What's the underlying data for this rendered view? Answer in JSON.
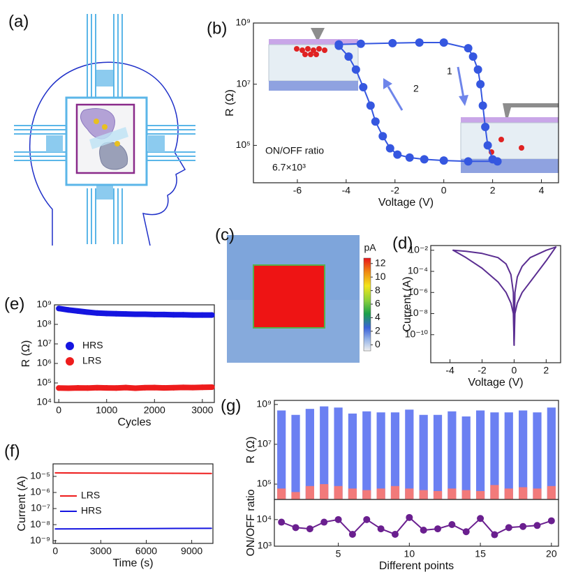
{
  "illustration": {
    "panel": "(a)"
  },
  "chart_data": [
    {
      "panel": "(b)",
      "type": "line",
      "xlabel": "Voltage (V)",
      "ylabel": "R (Ω)",
      "xlim": [
        -7.8,
        4.7
      ],
      "ylim": [
        6000,
        1000000000
      ],
      "ylog": true,
      "xticks": [
        -6,
        -4,
        -2,
        0,
        2,
        4
      ],
      "yticks": [
        {
          "value": 100000,
          "label": "10⁵"
        },
        {
          "value": 10000000,
          "label": "10⁷"
        },
        {
          "value": 1000000000,
          "label": "10⁹"
        }
      ],
      "marker_size": 6,
      "annotations": [
        "ON/OFF ratio",
        "6.7×10³",
        "1",
        "2"
      ],
      "series": [
        {
          "color": "#3557e0",
          "marker": "circle",
          "x": [
            -4.3,
            -3.4,
            -2.1,
            -1.0,
            0,
            1.0,
            1.2,
            1.4,
            1.5,
            1.6,
            1.7,
            1.8,
            2.0
          ],
          "values": [
            200000000,
            210000000,
            220000000,
            230000000,
            230000000,
            150000000,
            80000000,
            30000000,
            10000000,
            2000000,
            400000,
            100000,
            35000
          ]
        },
        {
          "color": "#3557e0",
          "marker": "circle",
          "x": [
            2.2,
            1.0,
            0,
            -0.8,
            -1.4,
            -1.9,
            -2.2,
            -2.5,
            -2.8,
            -3.0,
            -3.3,
            -3.6,
            -3.9,
            -4.3
          ],
          "values": [
            30000,
            30000,
            32000,
            35000,
            40000,
            50000,
            80000,
            200000,
            600000,
            2000000,
            8000000,
            30000000,
            80000000,
            180000000
          ]
        }
      ]
    },
    {
      "panel": "(c)",
      "type": "image",
      "colorbar": {
        "label": "pA",
        "lim": [
          -0.9,
          12.8
        ],
        "ticks": [
          0,
          2,
          4,
          6,
          8,
          10,
          12
        ]
      }
    },
    {
      "panel": "(d)",
      "type": "line",
      "xlabel": "Voltage (V)",
      "ylabel": "Current (A)",
      "xlim": [
        -5.2,
        2.9
      ],
      "ylim": [
        2.2e-13,
        0.028
      ],
      "ylog": true,
      "xticks": [
        -4,
        -2,
        0,
        2
      ],
      "yticks": [
        {
          "value": 0.01,
          "label": "10⁻²"
        },
        {
          "value": 0.0001,
          "label": "10⁻⁴"
        },
        {
          "value": 1e-06,
          "label": "10⁻⁶"
        },
        {
          "value": 1e-08,
          "label": "10⁻⁸"
        },
        {
          "value": 1e-10,
          "label": "10⁻¹⁰"
        }
      ],
      "series": [
        {
          "color": "#5a2d91",
          "x": [
            -3.8,
            -3,
            -2,
            -1,
            -0.5,
            -0.2,
            -0.05,
            0,
            0.05,
            0.2,
            0.5,
            1,
            2,
            2.6
          ],
          "values": [
            0.01,
            0.008,
            0.005,
            0.002,
            0.0005,
            5e-05,
            1e-06,
            1e-11,
            1e-06,
            3e-05,
            0.0003,
            0.002,
            0.01,
            0.02
          ]
        },
        {
          "color": "#5a2d91",
          "x": [
            -3.8,
            -3,
            -2,
            -1,
            -0.5,
            -0.2,
            -0.05,
            0,
            0.05,
            0.2,
            0.5,
            1,
            2,
            2.6
          ],
          "values": [
            0.01,
            0.002,
            0.0002,
            1e-05,
            1e-06,
            1e-07,
            1e-08,
            1e-11,
            1e-08,
            1e-07,
            1e-06,
            1e-05,
            0.001,
            0.02
          ]
        }
      ]
    },
    {
      "panel": "(e)",
      "type": "scatter",
      "xlabel": "Cycles",
      "ylabel": "R (Ω)",
      "xlim": [
        -90,
        3250
      ],
      "ylim": [
        10000,
        1000000000
      ],
      "ylog": true,
      "xticks": [
        0,
        1000,
        2000,
        3000
      ],
      "yticks": [
        {
          "value": 10000,
          "label": "10⁴"
        },
        {
          "value": 100000,
          "label": "10⁵"
        },
        {
          "value": 1000000,
          "label": "10⁶"
        },
        {
          "value": 10000000,
          "label": "10⁷"
        },
        {
          "value": 100000000,
          "label": "10⁸"
        },
        {
          "value": 1000000000,
          "label": "10⁹"
        }
      ],
      "legend": "center left",
      "x": [
        0,
        200,
        400,
        600,
        800,
        1000,
        1200,
        1400,
        1600,
        1800,
        2000,
        2200,
        2400,
        2600,
        2800,
        3000,
        3200
      ],
      "series": [
        {
          "name": "HRS",
          "color": "#1515e0",
          "values": [
            650000000,
            550000000,
            480000000,
            420000000,
            380000000,
            360000000,
            350000000,
            340000000,
            330000000,
            330000000,
            320000000,
            320000000,
            310000000,
            310000000,
            300000000,
            300000000,
            300000000
          ]
        },
        {
          "name": "LRS",
          "color": "#ee1c1c",
          "values": [
            55000,
            54000,
            56000,
            55000,
            57000,
            56000,
            55000,
            58000,
            54000,
            57000,
            58000,
            56000,
            57000,
            59000,
            58000,
            60000,
            61000
          ]
        }
      ]
    },
    {
      "panel": "(f)",
      "type": "line",
      "xlabel": "Time (s)",
      "ylabel": "Current (A)",
      "xlim": [
        -150,
        10400
      ],
      "ylim": [
        6.8e-10,
        6e-05
      ],
      "ylog": true,
      "xticks": [
        0,
        3000,
        6000,
        9000
      ],
      "yticks": [
        {
          "value": 1e-09,
          "label": "10⁻⁹"
        },
        {
          "value": 1e-08,
          "label": "10⁻⁸"
        },
        {
          "value": 1e-07,
          "label": "10⁻⁷"
        },
        {
          "value": 1e-06,
          "label": "10⁻⁶"
        },
        {
          "value": 1e-05,
          "label": "10⁻⁵"
        }
      ],
      "legend": "center left",
      "x": [
        0,
        2000,
        4000,
        6000,
        8000,
        10300
      ],
      "series": [
        {
          "name": "LRS",
          "color": "#ee1c1c",
          "values": [
            1.65e-05,
            1.62e-05,
            1.6e-05,
            1.58e-05,
            1.55e-05,
            1.53e-05
          ]
        },
        {
          "name": "HRS",
          "color": "#1515e0",
          "values": [
            5.4e-09,
            5.5e-09,
            5.6e-09,
            5.7e-09,
            5.8e-09,
            5.9e-09
          ]
        }
      ]
    },
    {
      "panel": "(g)",
      "type": "bar",
      "ylabel": "R (Ω)",
      "xlim": [
        0.5,
        20.5
      ],
      "ylim": [
        17000,
        1600000000
      ],
      "ylog": true,
      "yticks": [
        {
          "value": 100000,
          "label": "10⁵"
        },
        {
          "value": 10000000,
          "label": "10⁷"
        },
        {
          "value": 1000000000,
          "label": "10⁹"
        }
      ],
      "x": [
        1,
        2,
        3,
        4,
        5,
        6,
        7,
        8,
        9,
        10,
        11,
        12,
        13,
        14,
        15,
        16,
        17,
        18,
        19,
        20
      ],
      "series": [
        {
          "color": "#6b80f2",
          "values": [
            500000000,
            300000000,
            600000000,
            800000000,
            700000000,
            350000000,
            450000000,
            400000000,
            400000000,
            550000000,
            300000000,
            300000000,
            450000000,
            250000000,
            500000000,
            400000000,
            400000000,
            500000000,
            400000000,
            700000000
          ]
        },
        {
          "color": "#f27a7a",
          "values": [
            60000,
            40000,
            80000,
            100000,
            80000,
            60000,
            50000,
            60000,
            80000,
            60000,
            50000,
            45000,
            60000,
            50000,
            45000,
            90000,
            60000,
            70000,
            60000,
            80000
          ]
        }
      ]
    },
    {
      "type": "line",
      "xlabel": "Different points",
      "ylabel": "ON/OFF ratio",
      "xlim": [
        0.5,
        20.5
      ],
      "ylim": [
        1000,
        57000
      ],
      "ylog": true,
      "xticks": [
        5,
        10,
        15,
        20
      ],
      "yticks": [
        {
          "value": 1000,
          "label": "10³"
        },
        {
          "value": 10000,
          "label": "10⁴"
        }
      ],
      "marker_size": 5,
      "x": [
        1,
        2,
        3,
        4,
        5,
        6,
        7,
        8,
        9,
        10,
        11,
        12,
        13,
        14,
        15,
        16,
        17,
        18,
        19,
        20
      ],
      "series": [
        {
          "color": "#6a1f8f",
          "marker": "circle",
          "values": [
            8000,
            5000,
            4500,
            8000,
            10000,
            2800,
            10000,
            4500,
            2800,
            12000,
            4000,
            4500,
            6500,
            3500,
            11000,
            2700,
            5000,
            5500,
            6000,
            9000
          ]
        }
      ]
    }
  ]
}
